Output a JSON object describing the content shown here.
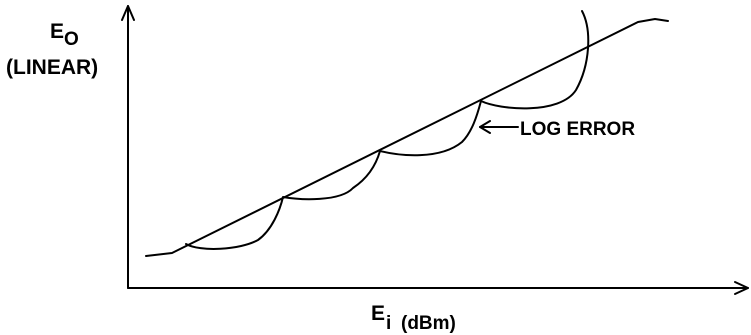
{
  "y_axis": {
    "label_main": "E",
    "label_sub": "O",
    "label_unit": "(LINEAR)"
  },
  "x_axis": {
    "label_main": "E",
    "label_sub": "i",
    "label_unit": "(dBm)"
  },
  "annotation": {
    "text": "LOG ERROR"
  },
  "colors": {
    "ink": "#000000",
    "background": "#ffffff"
  }
}
